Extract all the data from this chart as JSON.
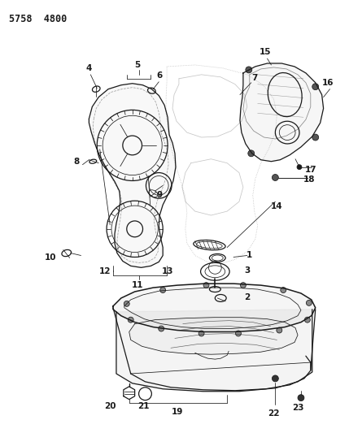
{
  "title": "5758  4800",
  "bg": "#ffffff",
  "lc": "#1a1a1a",
  "fig_w": 4.29,
  "fig_h": 5.33,
  "dpi": 100
}
